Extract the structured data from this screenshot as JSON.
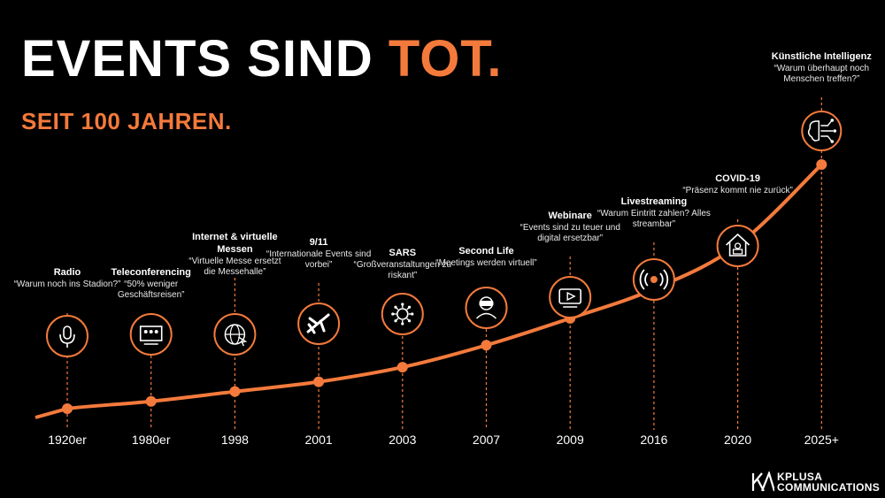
{
  "header": {
    "title_main": "EVENTS SIND ",
    "title_accent": "TOT.",
    "subtitle": "SEIT 100 JAHREN."
  },
  "colors": {
    "accent": "#f47a3c",
    "background": "#000000",
    "text": "#ffffff"
  },
  "events": [
    {
      "year": "1920er",
      "name": "Radio",
      "quote": "“Warum noch ins Stadion?”",
      "icon": "microphone-icon",
      "level": 0.0
    },
    {
      "year": "1980er",
      "name": "Teleconferencing",
      "quote": "“50% weniger Geschäftsreisen”",
      "icon": "video-conference-icon",
      "level": 0.03
    },
    {
      "year": "1998",
      "name": "Internet & virtuelle Messen",
      "quote": "“Virtuelle Messe ersetzt die Messehalle”",
      "icon": "globe-cursor-icon",
      "level": 0.07
    },
    {
      "year": "2001",
      "name": "9/11",
      "quote": "“Internationale Events sind vorbei”",
      "icon": "airplane-icon",
      "level": 0.11
    },
    {
      "year": "2003",
      "name": "SARS",
      "quote": "“Großveranstaltungen zu riskant”",
      "icon": "virus-icon",
      "level": 0.17
    },
    {
      "year": "2007",
      "name": "Second Life",
      "quote": "“Meetings werden virtuell”",
      "icon": "vr-headset-icon",
      "level": 0.26
    },
    {
      "year": "2009",
      "name": "Webinare",
      "quote": "“Events sind zu teuer und digital ersetzbar”",
      "icon": "video-play-icon",
      "level": 0.37
    },
    {
      "year": "2016",
      "name": "Livestreaming",
      "quote": "“Warum Eintritt zahlen? Alles streambar”",
      "icon": "broadcast-icon",
      "level": 0.49
    },
    {
      "year": "2020",
      "name": "COVID-19",
      "quote": "“Präsenz kommt nie zurück”",
      "icon": "home-office-icon",
      "level": 0.67
    },
    {
      "year": "2025+",
      "name": "Künstliche Intelligenz",
      "quote": "“Warum überhaupt noch Menschen treffen?”",
      "icon": "ai-brain-icon",
      "level": 1.0
    }
  ],
  "logo": {
    "line1": "KPLUSA",
    "line2": "COMMUNICATIONS"
  }
}
